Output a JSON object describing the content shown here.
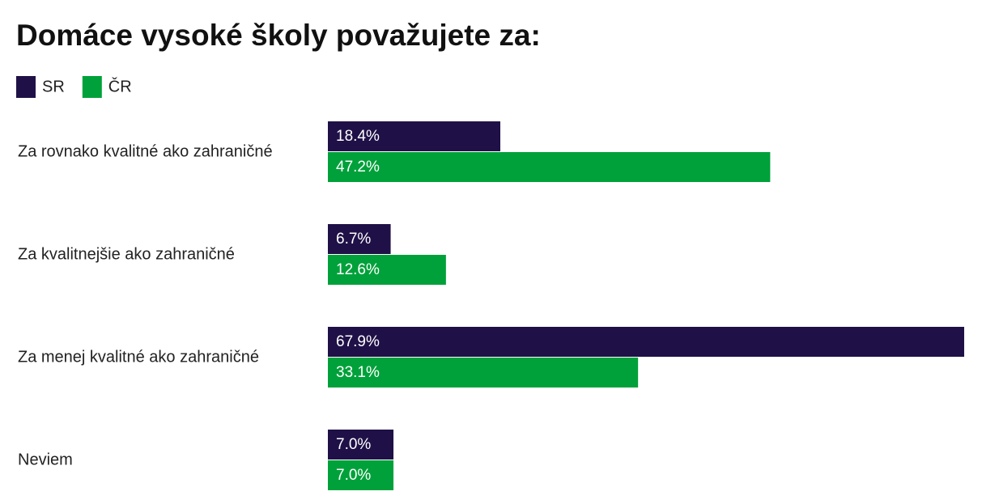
{
  "chart_data": {
    "type": "hbar",
    "title": "Domáce vysoké školy považujete za:",
    "categories": [
      "Za rovnako kvalitné ako zahraničné",
      "Za kvalitnejšie ako zahraničné",
      "Za menej kvalitné ako zahraničné",
      "Neviem"
    ],
    "series": [
      {
        "name": "SR",
        "color": "#1f1147",
        "values": [
          18.4,
          6.7,
          67.9,
          7.0
        ],
        "value_labels": [
          "18.4%",
          "6.7%",
          "67.9%",
          "7.0%"
        ]
      },
      {
        "name": "ČR",
        "color": "#00a13a",
        "values": [
          47.2,
          12.6,
          33.1,
          7.0
        ],
        "value_labels": [
          "47.2%",
          "12.6%",
          "33.1%",
          "7.0%"
        ]
      }
    ]
  }
}
